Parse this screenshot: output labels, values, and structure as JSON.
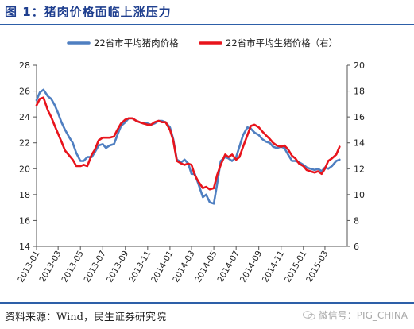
{
  "figure": {
    "title": "图 1：猪肉价格面临上涨压力",
    "source": "资料来源：Wind，民生证券研究院",
    "watermark": "微信号：PIG_CHINA"
  },
  "chart_data": {
    "type": "line",
    "title": "",
    "xlabel": "",
    "ylabel": "",
    "y_left": {
      "min": 14,
      "max": 28,
      "ticks": [
        14,
        16,
        18,
        20,
        22,
        24,
        26,
        28
      ]
    },
    "y_right": {
      "min": 6,
      "max": 20,
      "ticks": [
        6,
        8,
        10,
        12,
        14,
        16,
        18,
        20
      ]
    },
    "x_ticks": [
      "2013-01",
      "2013-03",
      "2013-05",
      "2013-07",
      "2013-09",
      "2013-11",
      "2014-01",
      "2014-03",
      "2014-05",
      "2014-07",
      "2014-09",
      "2014-11",
      "2015-01",
      "2015-03"
    ],
    "legend_position": "top",
    "grid": false,
    "series": [
      {
        "name": "22省市平均猪肉价格",
        "axis": "left",
        "color": "#4f7fc1",
        "points": [
          [
            "2013-01-01",
            25.3
          ],
          [
            "2013-01-10",
            25.9
          ],
          [
            "2013-01-20",
            26.1
          ],
          [
            "2013-02-01",
            25.6
          ],
          [
            "2013-02-10",
            25.4
          ],
          [
            "2013-02-20",
            24.9
          ],
          [
            "2013-03-01",
            24.3
          ],
          [
            "2013-03-10",
            23.6
          ],
          [
            "2013-03-20",
            23.0
          ],
          [
            "2013-04-01",
            22.4
          ],
          [
            "2013-04-10",
            22.0
          ],
          [
            "2013-04-20",
            21.2
          ],
          [
            "2013-05-01",
            20.6
          ],
          [
            "2013-05-10",
            20.6
          ],
          [
            "2013-05-20",
            20.9
          ],
          [
            "2013-06-01",
            20.9
          ],
          [
            "2013-06-10",
            21.3
          ],
          [
            "2013-06-20",
            21.8
          ],
          [
            "2013-07-01",
            21.9
          ],
          [
            "2013-07-10",
            21.6
          ],
          [
            "2013-07-20",
            21.8
          ],
          [
            "2013-08-01",
            21.9
          ],
          [
            "2013-08-10",
            22.6
          ],
          [
            "2013-08-20",
            23.3
          ],
          [
            "2013-09-01",
            23.6
          ],
          [
            "2013-09-10",
            23.9
          ],
          [
            "2013-09-20",
            23.9
          ],
          [
            "2013-10-01",
            23.7
          ],
          [
            "2013-10-10",
            23.6
          ],
          [
            "2013-10-20",
            23.5
          ],
          [
            "2013-11-01",
            23.5
          ],
          [
            "2013-11-10",
            23.4
          ],
          [
            "2013-11-20",
            23.5
          ],
          [
            "2013-12-01",
            23.7
          ],
          [
            "2013-12-10",
            23.7
          ],
          [
            "2013-12-20",
            23.6
          ],
          [
            "2014-01-01",
            23.2
          ],
          [
            "2014-01-10",
            22.3
          ],
          [
            "2014-01-20",
            20.7
          ],
          [
            "2014-02-01",
            20.5
          ],
          [
            "2014-02-10",
            20.7
          ],
          [
            "2014-02-20",
            20.4
          ],
          [
            "2014-03-01",
            19.6
          ],
          [
            "2014-03-10",
            19.6
          ],
          [
            "2014-03-20",
            18.8
          ],
          [
            "2014-04-01",
            17.8
          ],
          [
            "2014-04-10",
            18.0
          ],
          [
            "2014-04-20",
            17.4
          ],
          [
            "2014-05-01",
            17.3
          ],
          [
            "2014-05-10",
            18.8
          ],
          [
            "2014-05-20",
            20.6
          ],
          [
            "2014-06-01",
            20.9
          ],
          [
            "2014-06-10",
            20.8
          ],
          [
            "2014-06-20",
            20.6
          ],
          [
            "2014-07-01",
            20.9
          ],
          [
            "2014-07-10",
            21.7
          ],
          [
            "2014-07-20",
            22.6
          ],
          [
            "2014-08-01",
            23.2
          ],
          [
            "2014-08-10",
            23.1
          ],
          [
            "2014-08-20",
            22.8
          ],
          [
            "2014-09-01",
            22.6
          ],
          [
            "2014-09-10",
            22.3
          ],
          [
            "2014-09-20",
            22.1
          ],
          [
            "2014-10-01",
            22.0
          ],
          [
            "2014-10-10",
            21.7
          ],
          [
            "2014-10-20",
            21.6
          ],
          [
            "2014-11-01",
            21.7
          ],
          [
            "2014-11-10",
            21.6
          ],
          [
            "2014-11-20",
            21.1
          ],
          [
            "2014-12-01",
            20.6
          ],
          [
            "2014-12-10",
            20.6
          ],
          [
            "2014-12-20",
            20.5
          ],
          [
            "2015-01-01",
            20.3
          ],
          [
            "2015-01-10",
            20.1
          ],
          [
            "2015-01-20",
            20.0
          ],
          [
            "2015-02-01",
            19.9
          ],
          [
            "2015-02-10",
            20.0
          ],
          [
            "2015-02-20",
            19.8
          ],
          [
            "2015-03-01",
            20.1
          ],
          [
            "2015-03-10",
            20.0
          ],
          [
            "2015-03-20",
            20.2
          ],
          [
            "2015-04-01",
            20.6
          ],
          [
            "2015-04-10",
            20.7
          ]
        ]
      },
      {
        "name": "22省市平均生猪价格（右）",
        "axis": "right",
        "color": "#e8141c",
        "points": [
          [
            "2013-01-01",
            16.9
          ],
          [
            "2013-01-10",
            17.4
          ],
          [
            "2013-01-20",
            17.5
          ],
          [
            "2013-02-01",
            16.5
          ],
          [
            "2013-02-10",
            16.0
          ],
          [
            "2013-02-20",
            15.3
          ],
          [
            "2013-03-01",
            14.7
          ],
          [
            "2013-03-10",
            14.1
          ],
          [
            "2013-03-20",
            13.4
          ],
          [
            "2013-04-01",
            13.0
          ],
          [
            "2013-04-10",
            12.7
          ],
          [
            "2013-04-20",
            12.2
          ],
          [
            "2013-05-01",
            12.2
          ],
          [
            "2013-05-10",
            12.3
          ],
          [
            "2013-05-20",
            12.2
          ],
          [
            "2013-06-01",
            13.1
          ],
          [
            "2013-06-10",
            13.5
          ],
          [
            "2013-06-20",
            14.2
          ],
          [
            "2013-07-01",
            14.4
          ],
          [
            "2013-07-10",
            14.4
          ],
          [
            "2013-07-20",
            14.4
          ],
          [
            "2013-08-01",
            14.5
          ],
          [
            "2013-08-10",
            15.0
          ],
          [
            "2013-08-20",
            15.5
          ],
          [
            "2013-09-01",
            15.8
          ],
          [
            "2013-09-10",
            15.9
          ],
          [
            "2013-09-20",
            15.9
          ],
          [
            "2013-10-01",
            15.7
          ],
          [
            "2013-10-10",
            15.6
          ],
          [
            "2013-10-20",
            15.5
          ],
          [
            "2013-11-01",
            15.4
          ],
          [
            "2013-11-10",
            15.4
          ],
          [
            "2013-11-20",
            15.6
          ],
          [
            "2013-12-01",
            15.7
          ],
          [
            "2013-12-10",
            15.6
          ],
          [
            "2013-12-20",
            15.6
          ],
          [
            "2014-01-01",
            15.0
          ],
          [
            "2014-01-10",
            14.2
          ],
          [
            "2014-01-20",
            12.6
          ],
          [
            "2014-02-01",
            12.4
          ],
          [
            "2014-02-10",
            12.3
          ],
          [
            "2014-02-20",
            12.4
          ],
          [
            "2014-03-01",
            12.3
          ],
          [
            "2014-03-10",
            11.5
          ],
          [
            "2014-03-20",
            11.0
          ],
          [
            "2014-04-01",
            10.5
          ],
          [
            "2014-04-10",
            10.6
          ],
          [
            "2014-04-20",
            10.4
          ],
          [
            "2014-05-01",
            10.5
          ],
          [
            "2014-05-10",
            11.5
          ],
          [
            "2014-05-20",
            12.3
          ],
          [
            "2014-06-01",
            13.1
          ],
          [
            "2014-06-10",
            12.9
          ],
          [
            "2014-06-20",
            13.1
          ],
          [
            "2014-07-01",
            12.7
          ],
          [
            "2014-07-10",
            12.9
          ],
          [
            "2014-07-20",
            13.7
          ],
          [
            "2014-08-01",
            14.6
          ],
          [
            "2014-08-10",
            15.3
          ],
          [
            "2014-08-20",
            15.4
          ],
          [
            "2014-09-01",
            15.2
          ],
          [
            "2014-09-10",
            14.9
          ],
          [
            "2014-09-20",
            14.6
          ],
          [
            "2014-10-01",
            14.3
          ],
          [
            "2014-10-10",
            14.0
          ],
          [
            "2014-10-20",
            13.8
          ],
          [
            "2014-11-01",
            13.7
          ],
          [
            "2014-11-10",
            13.8
          ],
          [
            "2014-11-20",
            13.5
          ],
          [
            "2014-12-01",
            13.0
          ],
          [
            "2014-12-10",
            12.8
          ],
          [
            "2014-12-20",
            12.4
          ],
          [
            "2015-01-01",
            12.2
          ],
          [
            "2015-01-10",
            11.9
          ],
          [
            "2015-01-20",
            11.8
          ],
          [
            "2015-02-01",
            11.7
          ],
          [
            "2015-02-10",
            11.8
          ],
          [
            "2015-02-20",
            11.6
          ],
          [
            "2015-03-01",
            12.0
          ],
          [
            "2015-03-10",
            12.6
          ],
          [
            "2015-03-20",
            12.8
          ],
          [
            "2015-04-01",
            13.1
          ],
          [
            "2015-04-10",
            13.7
          ]
        ]
      }
    ]
  }
}
